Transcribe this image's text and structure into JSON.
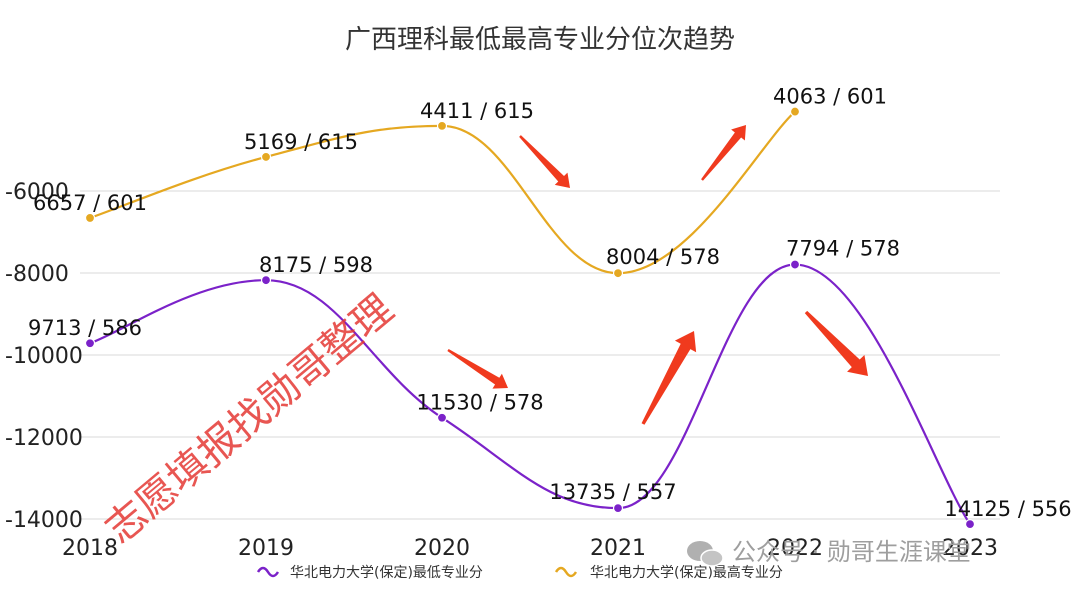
{
  "chart_data": {
    "type": "line",
    "title": "广西理科最低最高专业分位次趋势",
    "categories": [
      "2018",
      "2019",
      "2020",
      "2021",
      "2022",
      "2023"
    ],
    "yticks": [
      -6000,
      -8000,
      -10000,
      -12000,
      -14000
    ],
    "ylim": [
      -14000,
      -3300
    ],
    "grid": true,
    "legend_position": "bottom",
    "series": [
      {
        "name": "华北电力大学(保定)最低专业分",
        "color": "#7b22c9",
        "values": [
          -9713,
          -8175,
          -11530,
          -13735,
          -7794,
          -14125
        ],
        "labels": [
          "9713 / 586",
          "8175 / 598",
          "11530 / 578",
          "13735 / 557",
          "7794 / 578",
          "14125 / 556"
        ]
      },
      {
        "name": "华北电力大学(保定)最高专业分",
        "color": "#e5a821",
        "values": [
          -6657,
          -5169,
          -4411,
          -8004,
          -4063,
          null
        ],
        "labels": [
          "6657 / 601",
          "5169 / 615",
          "4411 / 615",
          "8004 / 578",
          "4063 / 601",
          ""
        ]
      }
    ]
  },
  "watermark": "志愿填报找勋哥整理",
  "footer_watermark": "公众号 · 勋哥生涯课堂",
  "colors": {
    "arrow": "#f03a1e",
    "grid": "#d9d9d9"
  }
}
